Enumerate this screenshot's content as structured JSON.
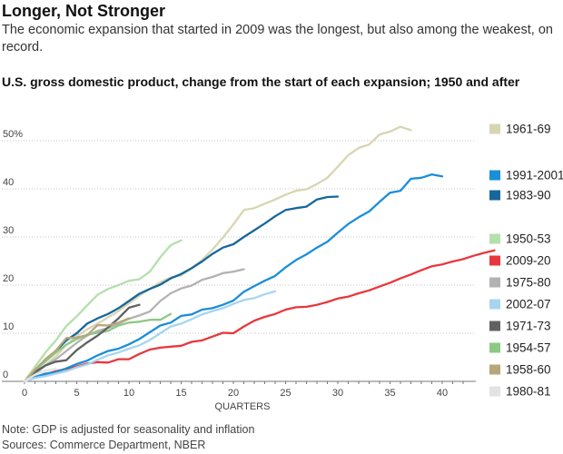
{
  "header": {
    "title": "Longer, Not Stronger",
    "subtitle": "The economic expansion that started in 2009 was the longest, but also among the weakest, on record.",
    "chart_heading": "U.S. gross domestic product, change from the start of each expansion; 1950 and after"
  },
  "footer": {
    "note": "Note: GDP is adjusted for seasonality and inflation",
    "sources": "Sources: Commerce Department, NBER"
  },
  "chart_data": {
    "type": "line",
    "title": "U.S. gross domestic product, change from the start of each expansion; 1950 and after",
    "xlabel": "QUARTERS",
    "ylabel": "",
    "xlim": [
      0,
      42
    ],
    "ylim": [
      0,
      55
    ],
    "x_ticks": [
      0,
      5,
      10,
      15,
      20,
      25,
      30,
      35,
      40
    ],
    "y_ticks": [
      0,
      10,
      20,
      30,
      40,
      50
    ],
    "y_tick_labels": [
      "0",
      "10",
      "20",
      "30",
      "40",
      "50%"
    ],
    "grid": "horizontal dotted",
    "legend_placement": "right",
    "series": [
      {
        "name": "1961-69",
        "color": "#d8d5b3",
        "values": [
          0,
          1.8,
          3.3,
          5.2,
          7.6,
          9.4,
          10.8,
          12.0,
          13.3,
          14.6,
          16.2,
          17.8,
          19.2,
          20.6,
          21.6,
          22.0,
          23.5,
          25.2,
          27.4,
          29.9,
          32.6,
          35.6,
          36.0,
          36.9,
          37.8,
          38.8,
          39.6,
          39.9,
          41.0,
          42.3,
          44.6,
          47.0,
          48.5,
          49.2,
          51.3,
          51.9,
          52.9,
          52.2
        ]
      },
      {
        "name": "1991-2001",
        "color": "#1a8ed8",
        "values": [
          0,
          0.9,
          1.6,
          1.9,
          2.7,
          3.6,
          4.3,
          5.4,
          6.3,
          6.8,
          7.7,
          8.8,
          10.2,
          11.6,
          12.2,
          13.6,
          13.9,
          14.9,
          15.2,
          15.9,
          16.8,
          18.6,
          19.8,
          20.9,
          21.9,
          23.7,
          25.2,
          26.4,
          27.8,
          29.0,
          30.9,
          32.7,
          34.1,
          35.3,
          37.3,
          39.2,
          39.6,
          42.1,
          42.3,
          43.0,
          42.6
        ]
      },
      {
        "name": "1983-90",
        "color": "#17679b",
        "values": [
          0,
          2.2,
          4.4,
          6.3,
          8.5,
          10.0,
          12.0,
          13.1,
          14.0,
          15.2,
          16.7,
          18.2,
          19.2,
          20.1,
          21.4,
          22.3,
          23.5,
          24.9,
          26.5,
          27.8,
          28.5,
          30.0,
          31.4,
          32.8,
          34.3,
          35.6,
          36.0,
          36.3,
          37.8,
          38.3,
          38.4
        ]
      },
      {
        "name": "1950-53",
        "color": "#b5dfad",
        "values": [
          0,
          3.0,
          6.0,
          8.5,
          11.5,
          13.5,
          15.8,
          18.0,
          19.2,
          20.0,
          20.9,
          21.2,
          22.8,
          25.8,
          28.3,
          29.3
        ]
      },
      {
        "name": "2009-20",
        "color": "#e8373c",
        "values": [
          0,
          0.8,
          1.5,
          2.1,
          2.6,
          3.1,
          3.7,
          4.0,
          3.9,
          4.6,
          4.6,
          5.7,
          6.6,
          7.0,
          7.2,
          7.4,
          8.2,
          8.5,
          9.3,
          10.1,
          10.0,
          11.4,
          12.6,
          13.4,
          14.0,
          14.9,
          15.4,
          15.5,
          15.9,
          16.5,
          17.2,
          17.6,
          18.3,
          18.9,
          19.7,
          20.5,
          21.4,
          22.2,
          23.1,
          23.9,
          24.3,
          24.9,
          25.4,
          26.1,
          26.7,
          27.2
        ]
      },
      {
        "name": "1975-80",
        "color": "#b2b2b2",
        "values": [
          0,
          1.5,
          3.3,
          4.6,
          6.3,
          8.0,
          9.5,
          10.5,
          11.1,
          12.0,
          13.0,
          13.7,
          14.5,
          16.7,
          18.3,
          19.3,
          19.9,
          21.1,
          21.7,
          22.5,
          22.8,
          23.3
        ]
      },
      {
        "name": "2002-07",
        "color": "#a7d5f0",
        "values": [
          0,
          0.7,
          1.1,
          1.6,
          2.1,
          2.9,
          3.5,
          4.5,
          5.4,
          6.0,
          6.8,
          7.5,
          8.6,
          10.0,
          11.4,
          12.0,
          12.9,
          13.9,
          14.6,
          15.2,
          16.1,
          16.9,
          17.3,
          18.1,
          18.7
        ]
      },
      {
        "name": "1971-73",
        "color": "#616161",
        "values": [
          0,
          1.9,
          3.3,
          4.1,
          4.4,
          6.5,
          8.1,
          9.5,
          11.2,
          13.1,
          15.3,
          15.9
        ]
      },
      {
        "name": "1954-57",
        "color": "#8cc985",
        "values": [
          0,
          2.3,
          4.1,
          6.0,
          7.6,
          8.8,
          9.7,
          10.1,
          10.5,
          11.6,
          12.2,
          12.4,
          12.8,
          12.8,
          14.0
        ]
      },
      {
        "name": "1958-60",
        "color": "#b5a77a",
        "values": [
          0,
          2.4,
          4.6,
          6.4,
          9.0,
          9.1,
          9.6,
          11.7,
          11.6,
          12.2,
          13.1
        ]
      },
      {
        "name": "1980-81",
        "color": "#e3e3e3",
        "values": [
          0,
          1.4,
          2.2,
          2.6
        ]
      }
    ]
  }
}
